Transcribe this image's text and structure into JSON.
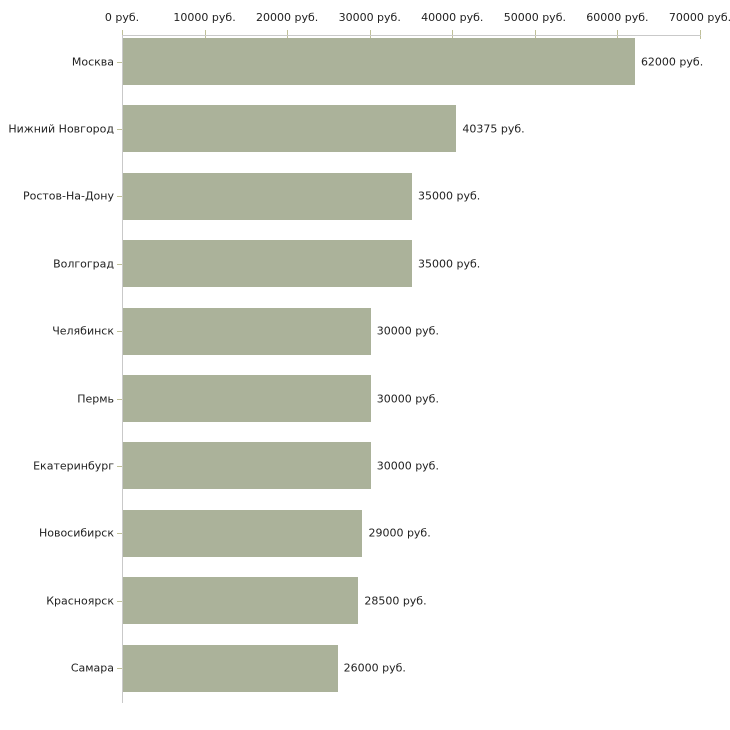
{
  "chart_data": {
    "type": "bar",
    "orientation": "horizontal",
    "title": "",
    "xlabel": "",
    "ylabel": "",
    "xlim": [
      0,
      70000
    ],
    "grid": false,
    "axis_position": "top",
    "categories": [
      "Москва",
      "Нижний Новгород",
      "Ростов-На-Дону",
      "Волгоград",
      "Челябинск",
      "Пермь",
      "Екатеринбург",
      "Новосибирск",
      "Красноярск",
      "Самара"
    ],
    "values": [
      62000,
      40375,
      35000,
      35000,
      30000,
      30000,
      30000,
      29000,
      28500,
      26000
    ],
    "value_labels": [
      "62000 руб.",
      "40375 руб.",
      "35000 руб.",
      "35000 руб.",
      "30000 руб.",
      "30000 руб.",
      "30000 руб.",
      "29000 руб.",
      "28500 руб.",
      "26000 руб."
    ],
    "x_ticks": [
      0,
      10000,
      20000,
      30000,
      40000,
      50000,
      60000,
      70000
    ],
    "x_tick_labels": [
      "0 руб.",
      "10000 руб.",
      "20000 руб.",
      "30000 руб.",
      "40000 руб.",
      "50000 руб.",
      "60000 руб.",
      "70000 руб."
    ],
    "colors": {
      "bar": "#abb29a",
      "axis_line": "#c9c9c9",
      "tick": "#bfc098",
      "text": "#222222",
      "background": "#ffffff"
    }
  }
}
